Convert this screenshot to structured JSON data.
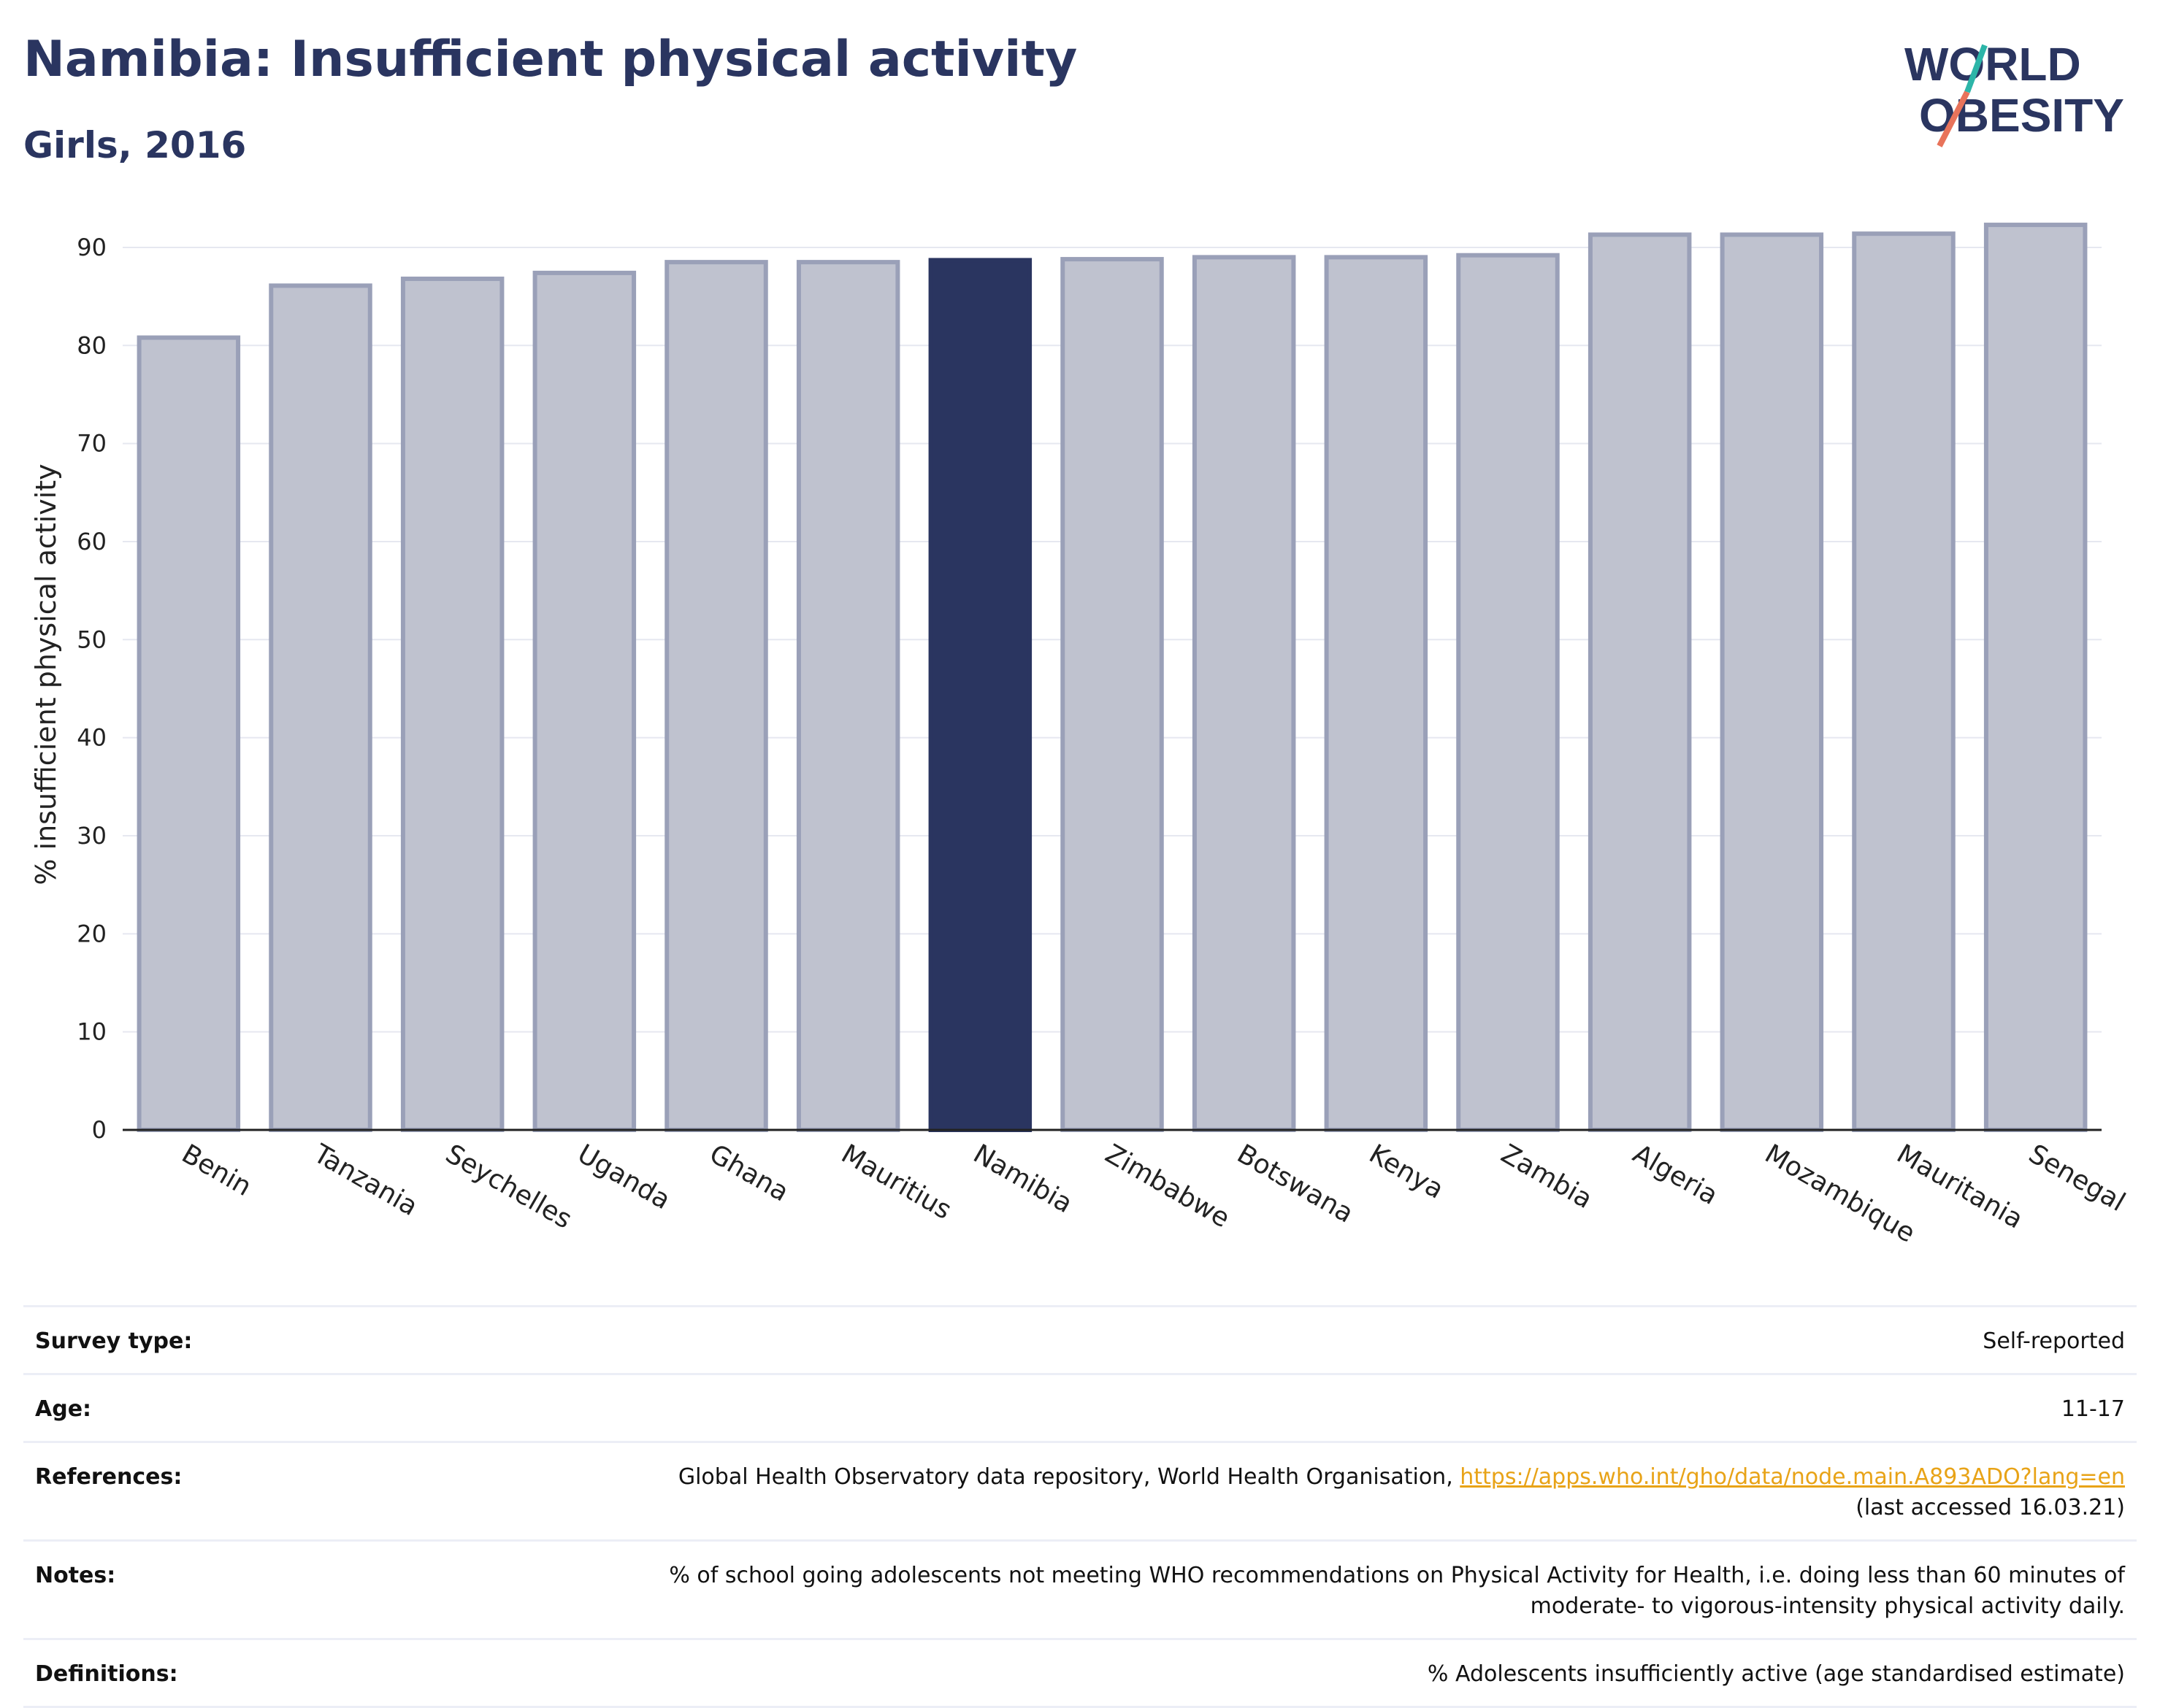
{
  "header": {
    "title": "Namibia: Insufficient physical activity",
    "subtitle": "Girls, 2016"
  },
  "logo": {
    "line1": "WORLD",
    "line2": "OBESITY"
  },
  "colors": {
    "highlight": "#2a3560",
    "bar_fill": "#bfc2cf",
    "bar_stroke": "#9aa0b8",
    "grid": "#e6e8f0",
    "title": "#2a3560",
    "link": "#e8a317"
  },
  "chart_data": {
    "type": "bar",
    "categories": [
      "Benin",
      "Tanzania",
      "Seychelles",
      "Uganda",
      "Ghana",
      "Mauritius",
      "Namibia",
      "Zimbabwe",
      "Botswana",
      "Kenya",
      "Zambia",
      "Algeria",
      "Mozambique",
      "Mauritania",
      "Senegal"
    ],
    "values": [
      80.8,
      86.1,
      86.8,
      87.4,
      88.5,
      88.5,
      88.7,
      88.8,
      89.0,
      89.0,
      89.2,
      91.3,
      91.3,
      91.4,
      92.3
    ],
    "highlight": "Namibia",
    "ylabel": "% insufficient physical activity",
    "ylim": [
      0,
      90
    ],
    "yticks": [
      0,
      10,
      20,
      30,
      40,
      50,
      60,
      70,
      80,
      90
    ],
    "grid": true
  },
  "info": {
    "survey_label": "Survey type:",
    "survey_value": "Self-reported",
    "age_label": "Age:",
    "age_value": "11-17",
    "references_label": "References:",
    "references_text": "Global Health Observatory data repository, World Health Organisation, ",
    "references_link": "https://apps.who.int/gho/data/node.main.A893ADO?lang=en",
    "references_accessed": "(last accessed 16.03.21)",
    "notes_label": "Notes:",
    "notes_line1": "% of school going adolescents not meeting WHO recommendations on Physical Activity for Health, i.e. doing less than 60 minutes of",
    "notes_line2": "moderate- to vigorous-intensity physical activity daily.",
    "definitions_label": "Definitions:",
    "definitions_value": "% Adolescents insufficiently active (age standardised estimate)"
  }
}
